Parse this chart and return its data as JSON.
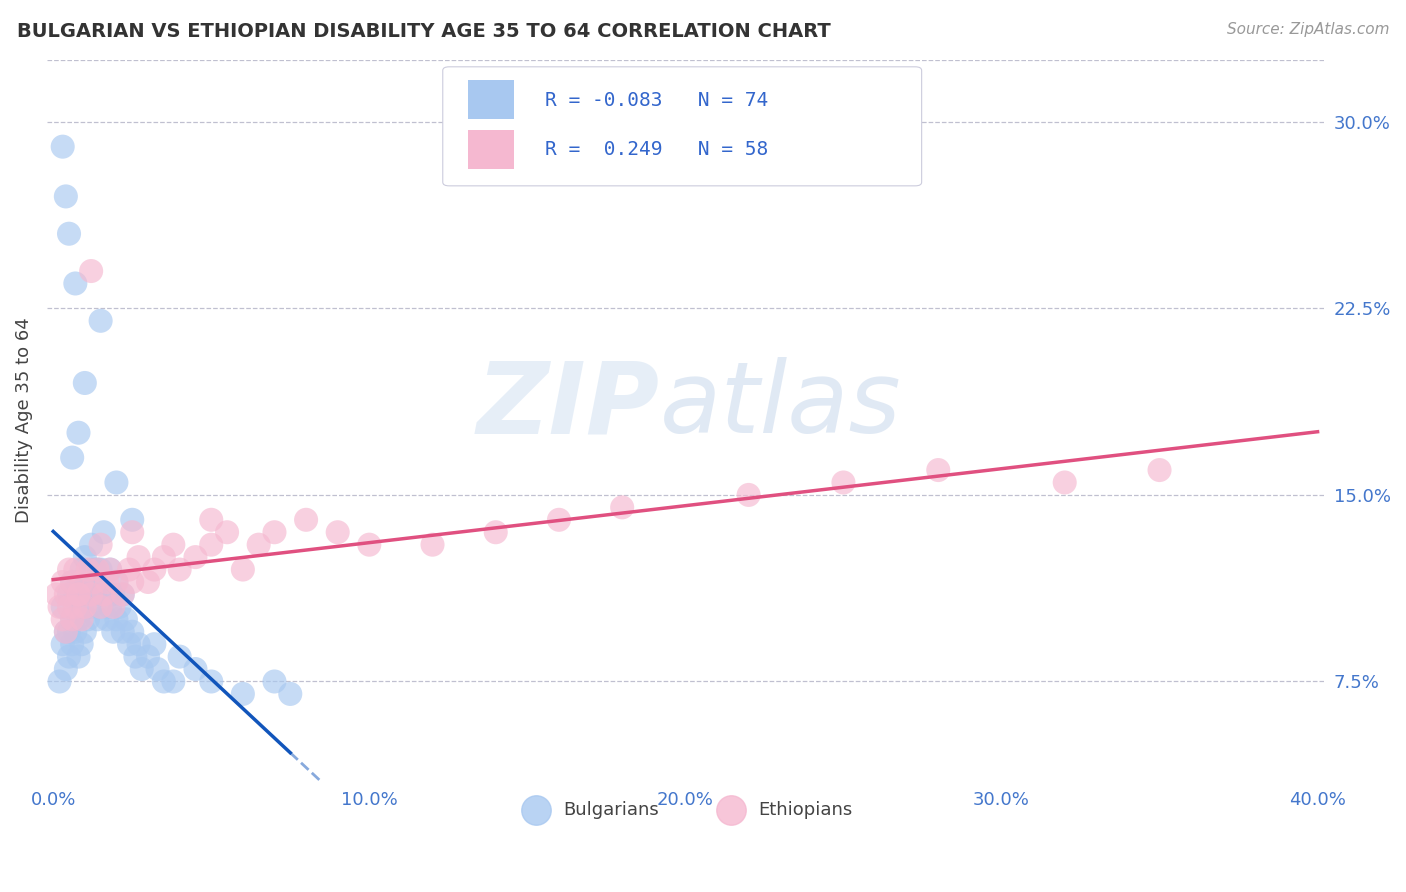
{
  "title": "BULGARIAN VS ETHIOPIAN DISABILITY AGE 35 TO 64 CORRELATION CHART",
  "source_text": "Source: ZipAtlas.com",
  "ylabel": "Disability Age 35 to 64",
  "xlim": [
    -0.002,
    0.402
  ],
  "ylim": [
    0.035,
    0.325
  ],
  "xticks": [
    0.0,
    0.1,
    0.2,
    0.3,
    0.4
  ],
  "xtick_labels": [
    "0.0%",
    "10.0%",
    "20.0%",
    "30.0%",
    "40.0%"
  ],
  "yticks_right": [
    0.075,
    0.15,
    0.225,
    0.3
  ],
  "ytick_labels_right": [
    "7.5%",
    "15.0%",
    "22.5%",
    "30.0%"
  ],
  "bulgarian_R": -0.083,
  "bulgarian_N": 74,
  "ethiopian_R": 0.249,
  "ethiopian_N": 58,
  "bulgarian_color": "#a8c8f0",
  "ethiopian_color": "#f5b8d0",
  "bulgarian_trend_color": "#1155bb",
  "ethiopian_trend_color": "#e05080",
  "legend_color": "#3366cc",
  "watermark": "ZIPatlas",
  "background_color": "#ffffff",
  "grid_color": "#c0c0d0",
  "title_color": "#333333",
  "axis_label_color": "#4477cc",
  "bx": [
    0.002,
    0.003,
    0.003,
    0.004,
    0.004,
    0.005,
    0.005,
    0.005,
    0.006,
    0.006,
    0.006,
    0.007,
    0.007,
    0.008,
    0.008,
    0.008,
    0.009,
    0.009,
    0.009,
    0.01,
    0.01,
    0.01,
    0.011,
    0.011,
    0.012,
    0.012,
    0.013,
    0.013,
    0.014,
    0.014,
    0.015,
    0.015,
    0.016,
    0.017,
    0.018,
    0.018,
    0.019,
    0.019,
    0.02,
    0.02,
    0.021,
    0.022,
    0.022,
    0.023,
    0.024,
    0.025,
    0.026,
    0.027,
    0.028,
    0.03,
    0.032,
    0.033,
    0.035,
    0.038,
    0.04,
    0.045,
    0.05,
    0.06,
    0.07,
    0.075,
    0.003,
    0.004,
    0.005,
    0.007,
    0.015,
    0.01,
    0.008,
    0.006,
    0.02,
    0.025,
    0.016,
    0.012,
    0.014,
    0.018
  ],
  "by": [
    0.075,
    0.09,
    0.105,
    0.08,
    0.095,
    0.085,
    0.095,
    0.11,
    0.09,
    0.1,
    0.115,
    0.095,
    0.11,
    0.085,
    0.1,
    0.115,
    0.09,
    0.105,
    0.12,
    0.095,
    0.11,
    0.125,
    0.1,
    0.115,
    0.105,
    0.12,
    0.11,
    0.12,
    0.1,
    0.115,
    0.105,
    0.12,
    0.11,
    0.1,
    0.105,
    0.12,
    0.095,
    0.11,
    0.1,
    0.115,
    0.105,
    0.095,
    0.11,
    0.1,
    0.09,
    0.095,
    0.085,
    0.09,
    0.08,
    0.085,
    0.09,
    0.08,
    0.075,
    0.075,
    0.085,
    0.08,
    0.075,
    0.07,
    0.075,
    0.07,
    0.29,
    0.27,
    0.255,
    0.235,
    0.22,
    0.195,
    0.175,
    0.165,
    0.155,
    0.14,
    0.135,
    0.13,
    0.12,
    0.11
  ],
  "ex": [
    0.001,
    0.002,
    0.003,
    0.003,
    0.004,
    0.004,
    0.005,
    0.005,
    0.006,
    0.006,
    0.007,
    0.007,
    0.008,
    0.009,
    0.009,
    0.01,
    0.011,
    0.012,
    0.013,
    0.014,
    0.015,
    0.016,
    0.017,
    0.018,
    0.019,
    0.02,
    0.022,
    0.024,
    0.025,
    0.027,
    0.03,
    0.032,
    0.035,
    0.038,
    0.04,
    0.045,
    0.05,
    0.055,
    0.06,
    0.065,
    0.07,
    0.08,
    0.09,
    0.1,
    0.12,
    0.14,
    0.16,
    0.18,
    0.22,
    0.25,
    0.28,
    0.32,
    0.35,
    0.05,
    0.015,
    0.025,
    0.008,
    0.012
  ],
  "ey": [
    0.11,
    0.105,
    0.1,
    0.115,
    0.095,
    0.11,
    0.105,
    0.12,
    0.1,
    0.115,
    0.105,
    0.12,
    0.11,
    0.1,
    0.115,
    0.105,
    0.12,
    0.11,
    0.115,
    0.12,
    0.105,
    0.11,
    0.115,
    0.12,
    0.105,
    0.115,
    0.11,
    0.12,
    0.115,
    0.125,
    0.115,
    0.12,
    0.125,
    0.13,
    0.12,
    0.125,
    0.13,
    0.135,
    0.12,
    0.13,
    0.135,
    0.14,
    0.135,
    0.13,
    0.13,
    0.135,
    0.14,
    0.145,
    0.15,
    0.155,
    0.16,
    0.155,
    0.16,
    0.14,
    0.13,
    0.135,
    0.11,
    0.24
  ],
  "watermark_parts": [
    "ZIP",
    "atlas"
  ],
  "watermark_colors": [
    "#c8d8e8",
    "#c0cce0"
  ]
}
